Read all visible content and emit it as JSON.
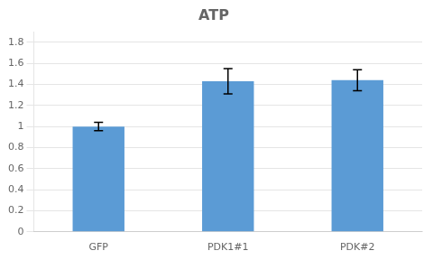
{
  "chart_data": {
    "type": "bar",
    "title": "ATP",
    "categories": [
      "GFP",
      "PDK1#1",
      "PDK#2"
    ],
    "values": [
      1.0,
      1.43,
      1.44
    ],
    "errors": [
      0.04,
      0.12,
      0.1
    ],
    "color": "#5b9bd5",
    "ylim": [
      0,
      1.9
    ],
    "yticks": [
      0,
      0.2,
      0.4,
      0.6,
      0.8,
      1,
      1.2,
      1.4,
      1.6,
      1.8
    ],
    "grid": true
  }
}
